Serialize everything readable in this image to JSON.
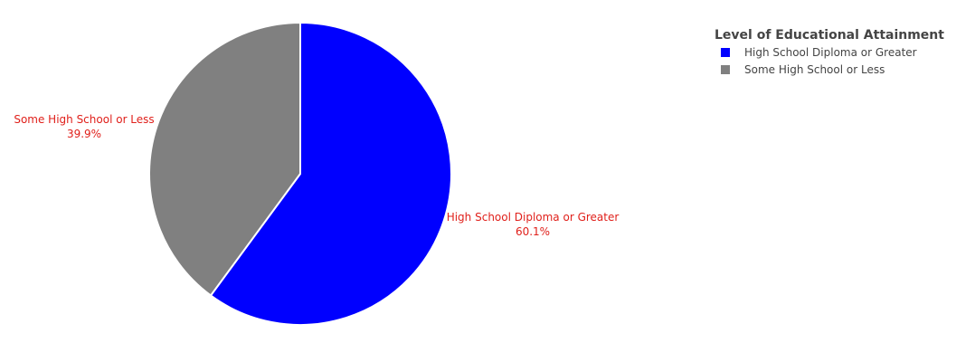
{
  "chart_data": {
    "type": "pie",
    "categories": [
      "High School Diploma or Greater",
      "Some High School or Less"
    ],
    "values": [
      60.1,
      39.9
    ],
    "value_labels": [
      "60.1%",
      "39.9%"
    ],
    "colors": [
      "#0000ff",
      "#808080"
    ],
    "label_color": "#e0201b",
    "slice_border_color": "#ffffff",
    "direction": "clockwise",
    "start": "top",
    "legend": {
      "title": "Level of Educational Attainment",
      "placement": "top-right",
      "entries": [
        "High School Diploma or Greater",
        "Some High School or Less"
      ]
    }
  }
}
